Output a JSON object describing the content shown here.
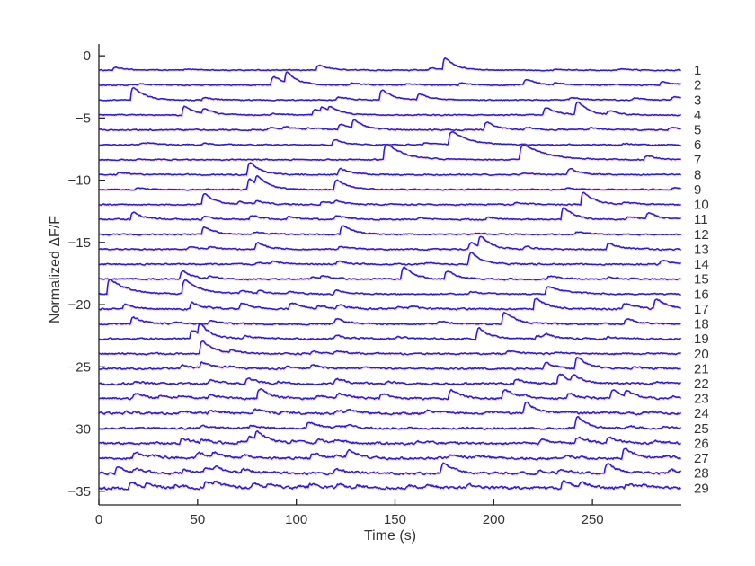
{
  "figure": {
    "title": "",
    "xlabel": "Time (s)",
    "ylabel": "Normalized ΔF/F"
  },
  "chart_data": {
    "type": "line",
    "title": "",
    "xlabel": "Time (s)",
    "ylabel": "Normalized ΔF/F",
    "xlim": [
      0,
      295
    ],
    "ylim": [
      -36.1,
      0.95
    ],
    "xticks": [
      0,
      50,
      100,
      150,
      200,
      250
    ],
    "yticks": [
      0,
      -5,
      -10,
      -15,
      -20,
      -25,
      -30,
      -35
    ],
    "grid": false,
    "legend": null,
    "trace_color": "#2a23ab",
    "shadow_color": "#e9a0de",
    "axis_color": "#222222",
    "trace_spacing": -1.2,
    "description": "29 stacked spontaneous calcium-transient traces; each trace listed with vertical baseline offset (Normalized dF/F units), noise amplitude, and transient events as [time_s, amplitude, optional_decay_s]",
    "traces": [
      {
        "id": "1",
        "baseline": -1.15,
        "noise": 0.035,
        "events": [
          [
            7,
            0.25
          ],
          [
            43,
            0.12
          ],
          [
            110,
            0.5
          ],
          [
            167,
            0.2
          ],
          [
            174,
            1.15
          ],
          [
            230,
            0.1
          ],
          [
            262,
            0.12
          ]
        ]
      },
      {
        "id": "2",
        "baseline": -2.35,
        "noise": 0.04,
        "events": [
          [
            20,
            0.12
          ],
          [
            87,
            0.85
          ],
          [
            94,
            1.05
          ],
          [
            127,
            0.2
          ],
          [
            155,
            0.15
          ],
          [
            182,
            0.2
          ],
          [
            215,
            0.55
          ],
          [
            230,
            0.2
          ],
          [
            284,
            0.35
          ]
        ]
      },
      {
        "id": "3",
        "baseline": -3.55,
        "noise": 0.04,
        "events": [
          [
            16,
            1.3
          ],
          [
            52,
            0.2
          ],
          [
            120,
            0.3
          ],
          [
            142,
            1.0
          ],
          [
            161,
            0.6
          ],
          [
            238,
            0.25
          ],
          [
            270,
            0.2
          ],
          [
            290,
            0.3
          ]
        ]
      },
      {
        "id": "4",
        "baseline": -4.75,
        "noise": 0.04,
        "events": [
          [
            42,
            0.9
          ],
          [
            52,
            0.45
          ],
          [
            87,
            0.15
          ],
          [
            108,
            0.55
          ],
          [
            112,
            0.5
          ],
          [
            116,
            0.45
          ],
          [
            225,
            0.75
          ],
          [
            241,
            1.3
          ],
          [
            257,
            0.35
          ]
        ]
      },
      {
        "id": "5",
        "baseline": -5.95,
        "noise": 0.045,
        "events": [
          [
            85,
            0.2
          ],
          [
            93,
            0.3
          ],
          [
            105,
            0.2
          ],
          [
            121,
            0.55
          ],
          [
            128,
            0.85
          ],
          [
            195,
            0.8
          ],
          [
            215,
            0.25
          ],
          [
            248,
            0.2
          ],
          [
            288,
            0.25
          ]
        ]
      },
      {
        "id": "6",
        "baseline": -7.15,
        "noise": 0.04,
        "events": [
          [
            20,
            0.15
          ],
          [
            24,
            0.12
          ],
          [
            52,
            0.15
          ],
          [
            118,
            0.5
          ],
          [
            164,
            0.2
          ],
          [
            177,
            1.2,
            9
          ],
          [
            265,
            0.12
          ]
        ]
      },
      {
        "id": "7",
        "baseline": -8.35,
        "noise": 0.04,
        "events": [
          [
            144,
            1.4,
            9
          ],
          [
            213,
            1.3,
            12
          ],
          [
            276,
            0.4
          ]
        ]
      },
      {
        "id": "8",
        "baseline": -9.55,
        "noise": 0.045,
        "events": [
          [
            9,
            0.2
          ],
          [
            75,
            1.2
          ],
          [
            121,
            0.6
          ],
          [
            214,
            0.15
          ],
          [
            237,
            0.6
          ]
        ]
      },
      {
        "id": "9",
        "baseline": -10.75,
        "noise": 0.04,
        "events": [
          [
            18,
            0.15
          ],
          [
            75,
            1.05
          ],
          [
            79,
            0.85
          ],
          [
            119,
            1.0
          ],
          [
            236,
            0.15
          ],
          [
            290,
            0.2
          ]
        ]
      },
      {
        "id": "10",
        "baseline": -11.95,
        "noise": 0.045,
        "events": [
          [
            52,
            1.1
          ],
          [
            70,
            0.25
          ],
          [
            79,
            0.3
          ],
          [
            112,
            0.3
          ],
          [
            119,
            0.3
          ],
          [
            210,
            0.2
          ],
          [
            244,
            1.25
          ],
          [
            265,
            0.25
          ]
        ]
      },
      {
        "id": "11",
        "baseline": -13.15,
        "noise": 0.05,
        "events": [
          [
            16,
            0.7
          ],
          [
            52,
            0.3
          ],
          [
            76,
            0.4
          ],
          [
            95,
            0.25
          ],
          [
            119,
            0.35
          ],
          [
            161,
            0.2
          ],
          [
            196,
            0.2
          ],
          [
            234,
            1.2
          ],
          [
            267,
            0.25
          ],
          [
            277,
            0.6
          ]
        ]
      },
      {
        "id": "12",
        "baseline": -14.35,
        "noise": 0.045,
        "events": [
          [
            52,
            0.75
          ],
          [
            78,
            0.25
          ],
          [
            122,
            0.9
          ],
          [
            190,
            0.12
          ],
          [
            241,
            0.25
          ]
        ]
      },
      {
        "id": "13",
        "baseline": -15.55,
        "noise": 0.05,
        "events": [
          [
            45,
            0.2
          ],
          [
            55,
            0.2
          ],
          [
            79,
            0.65
          ],
          [
            121,
            0.3
          ],
          [
            187,
            0.65
          ],
          [
            192,
            1.0
          ],
          [
            215,
            0.25
          ],
          [
            257,
            0.6
          ]
        ]
      },
      {
        "id": "14",
        "baseline": -16.75,
        "noise": 0.05,
        "events": [
          [
            79,
            0.2
          ],
          [
            87,
            0.25
          ],
          [
            120,
            0.3
          ],
          [
            165,
            0.15
          ],
          [
            187,
            1.2
          ],
          [
            284,
            0.4
          ]
        ]
      },
      {
        "id": "15",
        "baseline": -17.95,
        "noise": 0.05,
        "events": [
          [
            41,
            0.8
          ],
          [
            55,
            0.25
          ],
          [
            107,
            0.25
          ],
          [
            112,
            0.2
          ],
          [
            153,
            1.2
          ],
          [
            175,
            0.8
          ],
          [
            227,
            0.3
          ],
          [
            257,
            0.25
          ]
        ]
      },
      {
        "id": "16",
        "baseline": -19.15,
        "noise": 0.05,
        "events": [
          [
            4,
            1.3,
            9
          ],
          [
            42,
            1.3,
            8
          ],
          [
            71,
            0.3
          ],
          [
            80,
            0.25
          ],
          [
            95,
            0.2
          ],
          [
            119,
            0.4
          ],
          [
            187,
            0.25
          ],
          [
            226,
            0.7,
            9
          ]
        ]
      },
      {
        "id": "17",
        "baseline": -20.35,
        "noise": 0.06,
        "events": [
          [
            12,
            0.5
          ],
          [
            46,
            0.65
          ],
          [
            71,
            0.6
          ],
          [
            96,
            0.6
          ],
          [
            110,
            0.3
          ],
          [
            120,
            0.35
          ],
          [
            150,
            0.2
          ],
          [
            157,
            0.2
          ],
          [
            220,
            1.1
          ],
          [
            265,
            0.55
          ],
          [
            281,
            1.0
          ]
        ]
      },
      {
        "id": "18",
        "baseline": -21.55,
        "noise": 0.055,
        "events": [
          [
            16,
            0.65
          ],
          [
            37,
            0.2
          ],
          [
            55,
            0.3
          ],
          [
            119,
            0.5
          ],
          [
            171,
            0.25
          ],
          [
            204,
            1.2
          ],
          [
            266,
            0.5
          ]
        ]
      },
      {
        "id": "19",
        "baseline": -22.75,
        "noise": 0.055,
        "events": [
          [
            46,
            0.85
          ],
          [
            50,
            1.05
          ],
          [
            73,
            0.3
          ],
          [
            119,
            0.3
          ],
          [
            150,
            0.2
          ],
          [
            191,
            1.1
          ],
          [
            221,
            0.3
          ],
          [
            225,
            0.35
          ],
          [
            257,
            0.2
          ]
        ]
      },
      {
        "id": "20",
        "baseline": -23.95,
        "noise": 0.055,
        "events": [
          [
            51,
            1.3
          ],
          [
            66,
            0.25
          ],
          [
            107,
            0.2
          ],
          [
            119,
            0.25
          ],
          [
            206,
            0.3
          ],
          [
            230,
            0.15
          ]
        ]
      },
      {
        "id": "21",
        "baseline": -25.15,
        "noise": 0.06,
        "events": [
          [
            41,
            0.35
          ],
          [
            51,
            0.6
          ],
          [
            63,
            0.2
          ],
          [
            94,
            0.2
          ],
          [
            107,
            0.35
          ],
          [
            133,
            0.15
          ],
          [
            225,
            0.6
          ],
          [
            241,
            1.1
          ],
          [
            270,
            0.2
          ]
        ]
      },
      {
        "id": "22",
        "baseline": -26.35,
        "noise": 0.065,
        "events": [
          [
            17,
            0.2
          ],
          [
            55,
            0.35
          ],
          [
            74,
            0.5
          ],
          [
            90,
            0.15
          ],
          [
            119,
            0.5
          ],
          [
            145,
            0.2
          ],
          [
            210,
            0.4
          ],
          [
            232,
            1.0
          ],
          [
            239,
            0.55
          ],
          [
            280,
            0.2
          ]
        ]
      },
      {
        "id": "23",
        "baseline": -27.55,
        "noise": 0.07,
        "events": [
          [
            17,
            0.5
          ],
          [
            30,
            0.2
          ],
          [
            40,
            0.25
          ],
          [
            55,
            0.35
          ],
          [
            80,
            1.0
          ],
          [
            110,
            0.25
          ],
          [
            120,
            0.5
          ],
          [
            142,
            0.45
          ],
          [
            177,
            0.9
          ],
          [
            204,
            0.9
          ],
          [
            213,
            0.2
          ],
          [
            237,
            0.5
          ],
          [
            259,
            0.9
          ],
          [
            266,
            0.5
          ],
          [
            290,
            0.2
          ]
        ]
      },
      {
        "id": "24",
        "baseline": -28.75,
        "noise": 0.075,
        "events": [
          [
            12,
            0.2
          ],
          [
            40,
            0.25
          ],
          [
            55,
            0.3
          ],
          [
            78,
            0.45
          ],
          [
            92,
            0.2
          ],
          [
            119,
            0.3
          ],
          [
            125,
            0.25
          ],
          [
            165,
            0.3
          ],
          [
            195,
            0.2
          ],
          [
            215,
            1.1
          ],
          [
            235,
            0.15
          ],
          [
            255,
            0.15
          ],
          [
            275,
            0.2
          ]
        ]
      },
      {
        "id": "25",
        "baseline": -29.95,
        "noise": 0.065,
        "events": [
          [
            51,
            0.3
          ],
          [
            76,
            0.3
          ],
          [
            105,
            0.65
          ],
          [
            119,
            0.25
          ],
          [
            125,
            0.2
          ],
          [
            241,
            1.1
          ],
          [
            268,
            0.2
          ],
          [
            285,
            0.2
          ]
        ]
      },
      {
        "id": "26",
        "baseline": -31.15,
        "noise": 0.075,
        "events": [
          [
            41,
            0.5
          ],
          [
            51,
            0.3
          ],
          [
            70,
            0.25
          ],
          [
            75,
            0.55
          ],
          [
            79,
            0.9
          ],
          [
            97,
            0.2
          ],
          [
            110,
            0.4
          ],
          [
            119,
            0.3
          ],
          [
            160,
            0.2
          ],
          [
            223,
            0.35
          ],
          [
            241,
            0.6
          ],
          [
            257,
            0.6
          ],
          [
            280,
            0.2
          ]
        ]
      },
      {
        "id": "27",
        "baseline": -32.35,
        "noise": 0.08,
        "events": [
          [
            17,
            0.55
          ],
          [
            25,
            0.2
          ],
          [
            49,
            0.55
          ],
          [
            57,
            0.5
          ],
          [
            72,
            0.3
          ],
          [
            107,
            0.5
          ],
          [
            119,
            0.3
          ],
          [
            125,
            0.7
          ],
          [
            177,
            0.35
          ],
          [
            190,
            0.2
          ],
          [
            235,
            0.3
          ],
          [
            265,
            1.0
          ],
          [
            285,
            0.2
          ]
        ]
      },
      {
        "id": "28",
        "baseline": -33.55,
        "noise": 0.08,
        "events": [
          [
            8,
            0.6
          ],
          [
            17,
            0.3
          ],
          [
            42,
            0.3
          ],
          [
            53,
            0.55
          ],
          [
            58,
            0.4
          ],
          [
            72,
            0.35
          ],
          [
            119,
            0.4
          ],
          [
            173,
            1.0
          ],
          [
            222,
            0.25
          ],
          [
            232,
            0.25
          ],
          [
            256,
            1.0
          ],
          [
            288,
            0.3
          ]
        ]
      },
      {
        "id": "29",
        "baseline": -34.75,
        "noise": 0.09,
        "events": [
          [
            15,
            0.55
          ],
          [
            23,
            0.3
          ],
          [
            38,
            0.3
          ],
          [
            53,
            0.6
          ],
          [
            58,
            0.35
          ],
          [
            77,
            0.45
          ],
          [
            85,
            0.3
          ],
          [
            100,
            0.25
          ],
          [
            106,
            0.3
          ],
          [
            120,
            0.35
          ],
          [
            130,
            0.2
          ],
          [
            155,
            0.25
          ],
          [
            165,
            0.2
          ],
          [
            186,
            0.3
          ],
          [
            234,
            0.7
          ],
          [
            243,
            0.4
          ],
          [
            266,
            0.35
          ],
          [
            275,
            0.25
          ]
        ]
      }
    ]
  }
}
